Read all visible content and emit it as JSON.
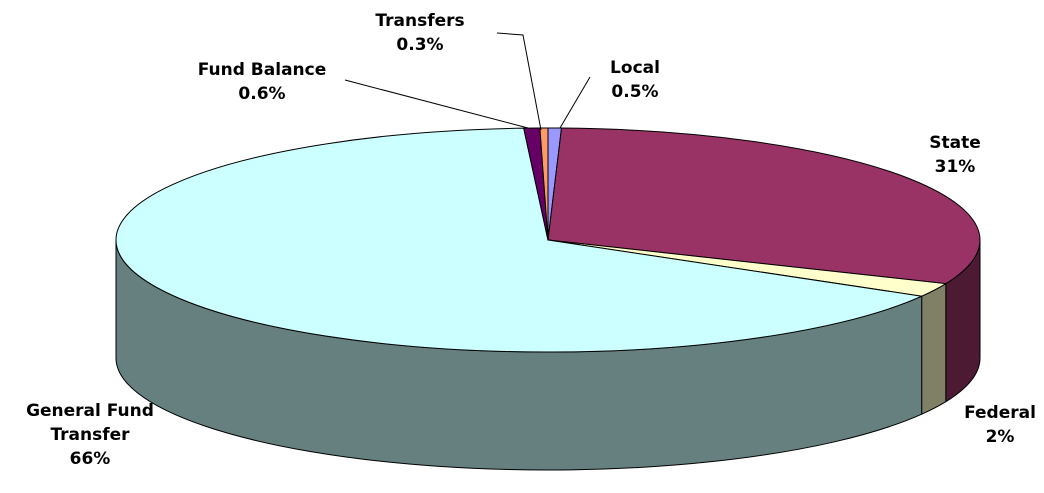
{
  "chart_data": {
    "type": "pie3d",
    "categories": [
      "Local",
      "State",
      "Federal",
      "General Fund Transfer",
      "Fund Balance",
      "Transfers"
    ],
    "values": [
      0.5,
      31,
      2,
      66,
      0.6,
      0.3
    ],
    "value_labels": [
      "0.5%",
      "31%",
      "2%",
      "66%",
      "0.6%",
      "0.3%"
    ],
    "colors": [
      "#9999ff",
      "#993366",
      "#ffffcc",
      "#ccffff",
      "#660066",
      "#ff9966"
    ]
  }
}
